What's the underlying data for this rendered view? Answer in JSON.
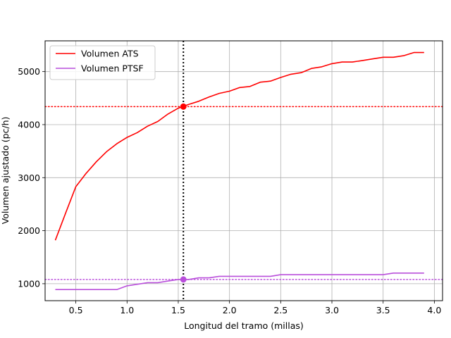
{
  "chart_data": {
    "type": "line",
    "xlabel": "Longitud del tramo (millas)",
    "ylabel": "Volumen ajustado (pc/h)",
    "xlim": [
      0.2,
      4.08
    ],
    "ylim": [
      680,
      5580
    ],
    "xticks": [
      "0.5",
      "1.0",
      "1.5",
      "2.0",
      "2.5",
      "3.0",
      "3.5",
      "4.0"
    ],
    "yticks": [
      "1000",
      "2000",
      "3000",
      "4000",
      "5000"
    ],
    "grid": true,
    "legend_position": "top-left",
    "x": [
      0.3,
      0.4,
      0.5,
      0.6,
      0.7,
      0.8,
      0.9,
      1.0,
      1.1,
      1.2,
      1.3,
      1.4,
      1.5,
      1.6,
      1.7,
      1.8,
      1.9,
      2.0,
      2.1,
      2.2,
      2.3,
      2.4,
      2.5,
      2.6,
      2.7,
      2.8,
      2.9,
      3.0,
      3.1,
      3.2,
      3.3,
      3.4,
      3.5,
      3.6,
      3.7,
      3.8,
      3.9
    ],
    "series": [
      {
        "name": "Volumen ATS",
        "color": "#ff0000",
        "values": [
          1820,
          2330,
          2830,
          3080,
          3300,
          3490,
          3640,
          3760,
          3850,
          3970,
          4060,
          4200,
          4310,
          4380,
          4440,
          4520,
          4590,
          4630,
          4700,
          4720,
          4800,
          4820,
          4890,
          4950,
          4980,
          5060,
          5090,
          5150,
          5180,
          5180,
          5210,
          5240,
          5270,
          5270,
          5300,
          5360,
          5360
        ]
      },
      {
        "name": "Volumen PTSF",
        "color": "#b94fdb",
        "values": [
          890,
          890,
          890,
          890,
          890,
          890,
          890,
          960,
          990,
          1020,
          1020,
          1050,
          1080,
          1080,
          1110,
          1110,
          1140,
          1140,
          1140,
          1140,
          1140,
          1140,
          1170,
          1170,
          1170,
          1170,
          1170,
          1170,
          1170,
          1170,
          1170,
          1170,
          1170,
          1200,
          1200,
          1200,
          1200
        ]
      }
    ],
    "reference_lines": {
      "vertical_x": 1.55,
      "vertical_color": "#000000",
      "horizontal": [
        {
          "y": 4340,
          "color": "#ff0000"
        },
        {
          "y": 1080,
          "color": "#b94fdb"
        }
      ],
      "markers": [
        {
          "x": 1.55,
          "y": 4340,
          "color": "#ff0000"
        },
        {
          "x": 1.55,
          "y": 1080,
          "color": "#b94fdb"
        }
      ]
    }
  }
}
